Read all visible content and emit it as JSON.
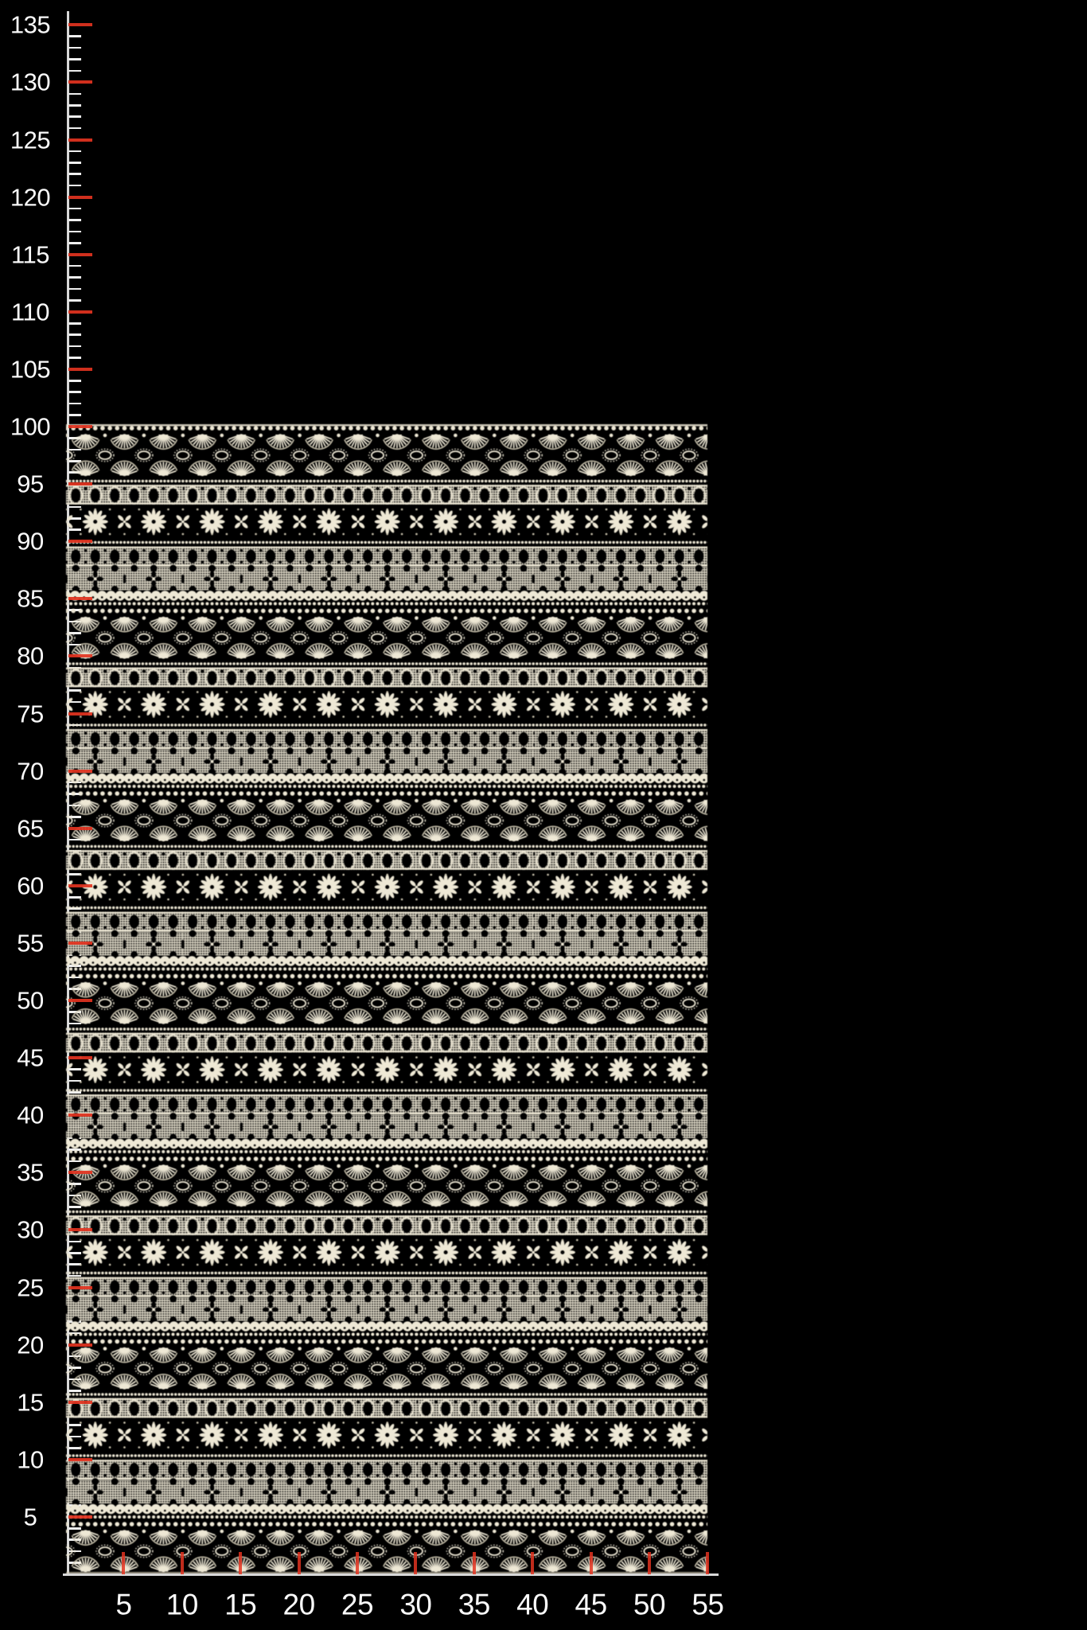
{
  "meta": {
    "type": "product-measurement-photo",
    "description": "Ivory crochet guipure lace fabric panel photographed on a black background with a vertical measuring ruler on the left and a horizontal ruler along the bottom. The fabric piece spans about 55 units wide and 100 units tall; the vertical scale extends to 135."
  },
  "colors": {
    "background": "#000000",
    "axis-line": "#d8d8d8",
    "tick-minor": "#efefef",
    "tick-major": "#e23320",
    "label": "#fafafa",
    "lace-cream": "#eee8d5",
    "lace-shade": "#cfc8b2",
    "lace-hole": "#050503"
  },
  "vertical_ruler": {
    "orientation": "left",
    "major_step": 5,
    "minor_step": 1,
    "max_value": 135,
    "labels": [
      "135",
      "130",
      "125",
      "120",
      "115",
      "110",
      "105",
      "100",
      "95",
      "90",
      "85",
      "80",
      "75",
      "70",
      "65",
      "60",
      "55",
      "50",
      "45",
      "40",
      "35",
      "30",
      "25",
      "20",
      "15",
      "10",
      "5"
    ]
  },
  "horizontal_ruler": {
    "orientation": "bottom",
    "major_step": 5,
    "labels": [
      "5",
      "10",
      "15",
      "20",
      "25",
      "30",
      "35",
      "40",
      "45",
      "50",
      "55"
    ]
  },
  "fabric": {
    "description": "Cream crochet lace fabric with repeating horizontal pattern bands",
    "width_units": 55,
    "height_units": 100,
    "pattern_bands": [
      "picot edge row",
      "sunburst fan band with oval eyelet flowers",
      "picot dot row",
      "teardrop eyelet row on mesh",
      "daisy flower band",
      "picot dot row",
      "oval eyelet row on mesh",
      "diamond mesh band with dark cross motifs",
      "scallop row",
      "picot dot row"
    ]
  }
}
